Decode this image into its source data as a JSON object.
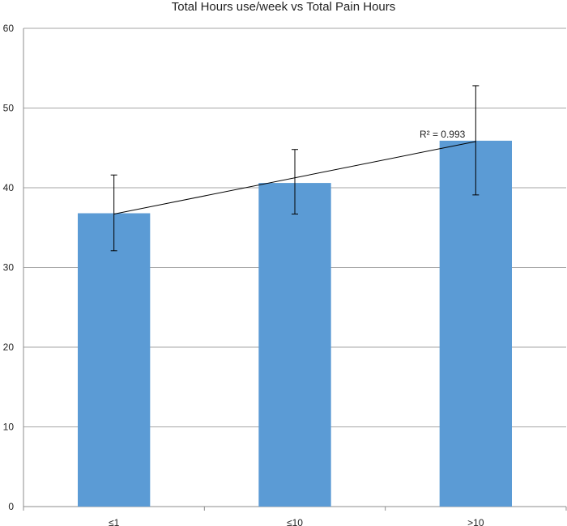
{
  "chart_data": {
    "type": "bar",
    "title": "Total Hours use/week vs Total Pain Hours",
    "xlabel": "",
    "ylabel": "",
    "categories": [
      "≤1",
      "≤10",
      ">10"
    ],
    "series": [
      {
        "values": [
          36.8,
          40.6,
          45.9
        ],
        "error_low": [
          32.1,
          36.7,
          39.1
        ],
        "error_high": [
          41.6,
          44.8,
          52.8
        ],
        "color": "#5B9BD5"
      }
    ],
    "trendline": {
      "type": "linear",
      "start": 36.7,
      "end": 45.8,
      "r2_label": "R² = 0.993"
    },
    "ylim": [
      0,
      60
    ],
    "yticks": [
      0,
      10,
      20,
      30,
      40,
      50,
      60
    ],
    "grid": true,
    "legend": "none"
  }
}
